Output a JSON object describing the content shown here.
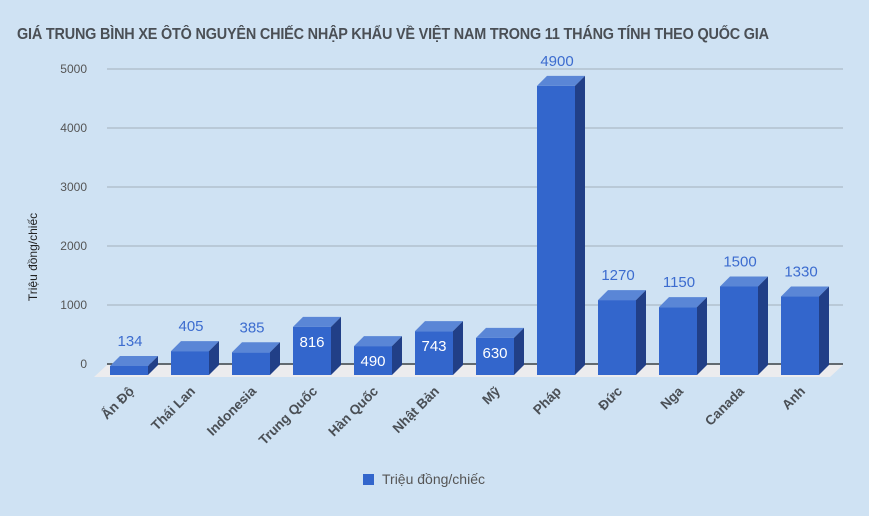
{
  "chart_data": {
    "type": "bar",
    "title": "GIÁ TRUNG BÌNH XE ÔTÔ NGUYÊN CHIẾC NHẬP KHẨU VỀ VIỆT NAM TRONG 11 THÁNG TÍNH THEO QUỐC GIA",
    "xlabel": "",
    "ylabel": "Triệu đồng/chiếc",
    "ylim": [
      0,
      5000
    ],
    "yticks": [
      0,
      1000,
      2000,
      3000,
      4000,
      5000
    ],
    "grid": true,
    "legend_position": "bottom",
    "categories": [
      "Ấn Độ",
      "Thái Lan",
      "Indonesia",
      "Trung Quốc",
      "Hàn Quốc",
      "Nhật Bản",
      "Mỹ",
      "Pháp",
      "Đức",
      "Nga",
      "Canada",
      "Anh"
    ],
    "series": [
      {
        "name": "Triệu đồng/chiếc",
        "color": "#3366cc",
        "values": [
          134,
          405,
          385,
          816,
          490,
          743,
          630,
          4900,
          1270,
          1150,
          1500,
          1330
        ]
      }
    ],
    "style": "3d-bar"
  },
  "legend": {
    "label": "Triệu đồng/chiếc"
  },
  "colors": {
    "bar_front": "#3366cc",
    "bar_top": "#5a86d6",
    "bar_side": "#213f87",
    "background": "#cfe2f3",
    "grid": "#a3b0bb",
    "floor": "#ececee",
    "label_outside": "#3c6ccf",
    "label_inside": "#ffffff"
  }
}
